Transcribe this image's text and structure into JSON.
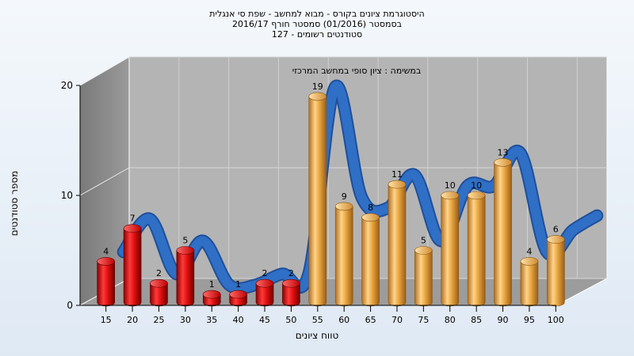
{
  "chart_data": {
    "type": "bar",
    "title_lines": [
      "היסטוגרמת ציונים בקורס - מבוא למחשב - שפת סי אנגלית",
      "בסמסטר  (01/2016)  סמסטר חורף 2016/17",
      "סטודנטים רשומים - 127"
    ],
    "subtitle": "במשימה : ציון סופי במחשב המרכזי",
    "xlabel": "טווח ציונים",
    "ylabel": "מספר סטודנטים",
    "categories": [
      "15",
      "20",
      "25",
      "30",
      "35",
      "40",
      "45",
      "50",
      "55",
      "60",
      "65",
      "70",
      "75",
      "80",
      "85",
      "90",
      "95",
      "100"
    ],
    "values": [
      4,
      7,
      2,
      5,
      1,
      1,
      2,
      2,
      19,
      9,
      8,
      11,
      5,
      10,
      10,
      13,
      4,
      6
    ],
    "ylim": [
      0,
      20
    ],
    "yticks": [
      0,
      10,
      20
    ],
    "pass_threshold_category": "55",
    "colors": {
      "fail": "#e01010",
      "pass": "#e8a640",
      "ribbon": "#2f6fc6",
      "wall": "#8a8a8a",
      "plot": "#b4b4b4",
      "floor": "#9c9c9c"
    },
    "grid": true,
    "legend": "none"
  }
}
